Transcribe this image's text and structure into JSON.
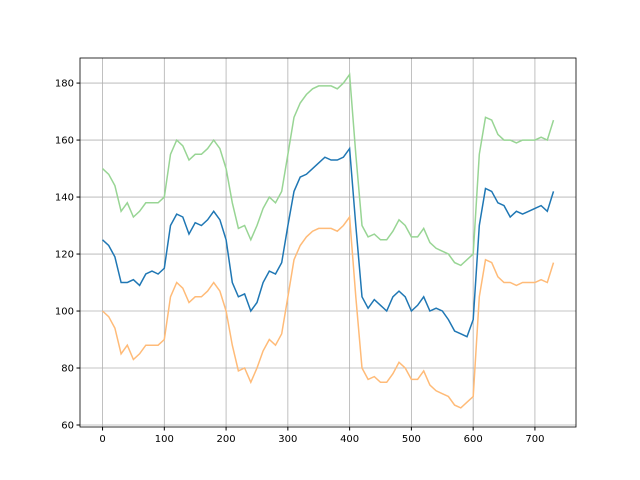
{
  "chart_data": {
    "type": "line",
    "x": [
      0,
      10,
      20,
      30,
      40,
      50,
      60,
      70,
      80,
      90,
      100,
      110,
      120,
      130,
      140,
      150,
      160,
      170,
      180,
      190,
      200,
      210,
      220,
      230,
      240,
      250,
      260,
      270,
      280,
      290,
      300,
      310,
      320,
      330,
      340,
      350,
      360,
      370,
      380,
      390,
      400,
      410,
      420,
      430,
      440,
      450,
      460,
      470,
      480,
      490,
      500,
      510,
      520,
      530,
      540,
      550,
      560,
      570,
      580,
      590,
      600,
      610,
      620,
      630,
      640,
      650,
      660,
      670,
      680,
      690,
      700,
      710,
      720,
      730
    ],
    "series": [
      {
        "color": "#98d594",
        "values": [
          150,
          148,
          144,
          135,
          138,
          133,
          135,
          138,
          138,
          138,
          140,
          155,
          160,
          158,
          153,
          155,
          155,
          157,
          160,
          157,
          150,
          138,
          129,
          130,
          125,
          130,
          136,
          140,
          138,
          142,
          155,
          168,
          173,
          176,
          178,
          179,
          179,
          179,
          178,
          180,
          183,
          155,
          130,
          126,
          127,
          125,
          125,
          128,
          132,
          130,
          126,
          126,
          129,
          124,
          122,
          121,
          120,
          117,
          116,
          118,
          120,
          155,
          168,
          167,
          162,
          160,
          160,
          159,
          160,
          160,
          160,
          161,
          160,
          167
        ]
      },
      {
        "color": "#ffbb78",
        "values": [
          100,
          98,
          94,
          85,
          88,
          83,
          85,
          88,
          88,
          88,
          90,
          105,
          110,
          108,
          103,
          105,
          105,
          107,
          110,
          107,
          100,
          88,
          79,
          80,
          75,
          80,
          86,
          90,
          88,
          92,
          105,
          118,
          123,
          126,
          128,
          129,
          129,
          129,
          128,
          130,
          133,
          105,
          80,
          76,
          77,
          75,
          75,
          78,
          82,
          80,
          76,
          76,
          79,
          74,
          72,
          71,
          70,
          67,
          66,
          68,
          70,
          105,
          118,
          117,
          112,
          110,
          110,
          109,
          110,
          110,
          110,
          111,
          110,
          117
        ]
      },
      {
        "color": "#1f77b4",
        "values": [
          125,
          123,
          119,
          110,
          110,
          111,
          109,
          113,
          114,
          113,
          115,
          130,
          134,
          133,
          127,
          131,
          130,
          132,
          135,
          132,
          125,
          110,
          105,
          106,
          100,
          103,
          110,
          114,
          113,
          117,
          130,
          142,
          147,
          148,
          150,
          152,
          154,
          153,
          153,
          154,
          157,
          130,
          105,
          101,
          104,
          102,
          100,
          105,
          107,
          105,
          100,
          102,
          105,
          100,
          101,
          100,
          97,
          93,
          92,
          91,
          97,
          130,
          143,
          142,
          138,
          137,
          133,
          135,
          134,
          135,
          136,
          137,
          135,
          142
        ]
      }
    ],
    "xlim": [
      -36.5,
      766.5
    ],
    "ylim": [
      59.3,
      188.8
    ],
    "xticks": [
      0,
      100,
      200,
      300,
      400,
      500,
      600,
      700
    ],
    "yticks": [
      60,
      80,
      100,
      120,
      140,
      160,
      180
    ],
    "grid": true
  }
}
